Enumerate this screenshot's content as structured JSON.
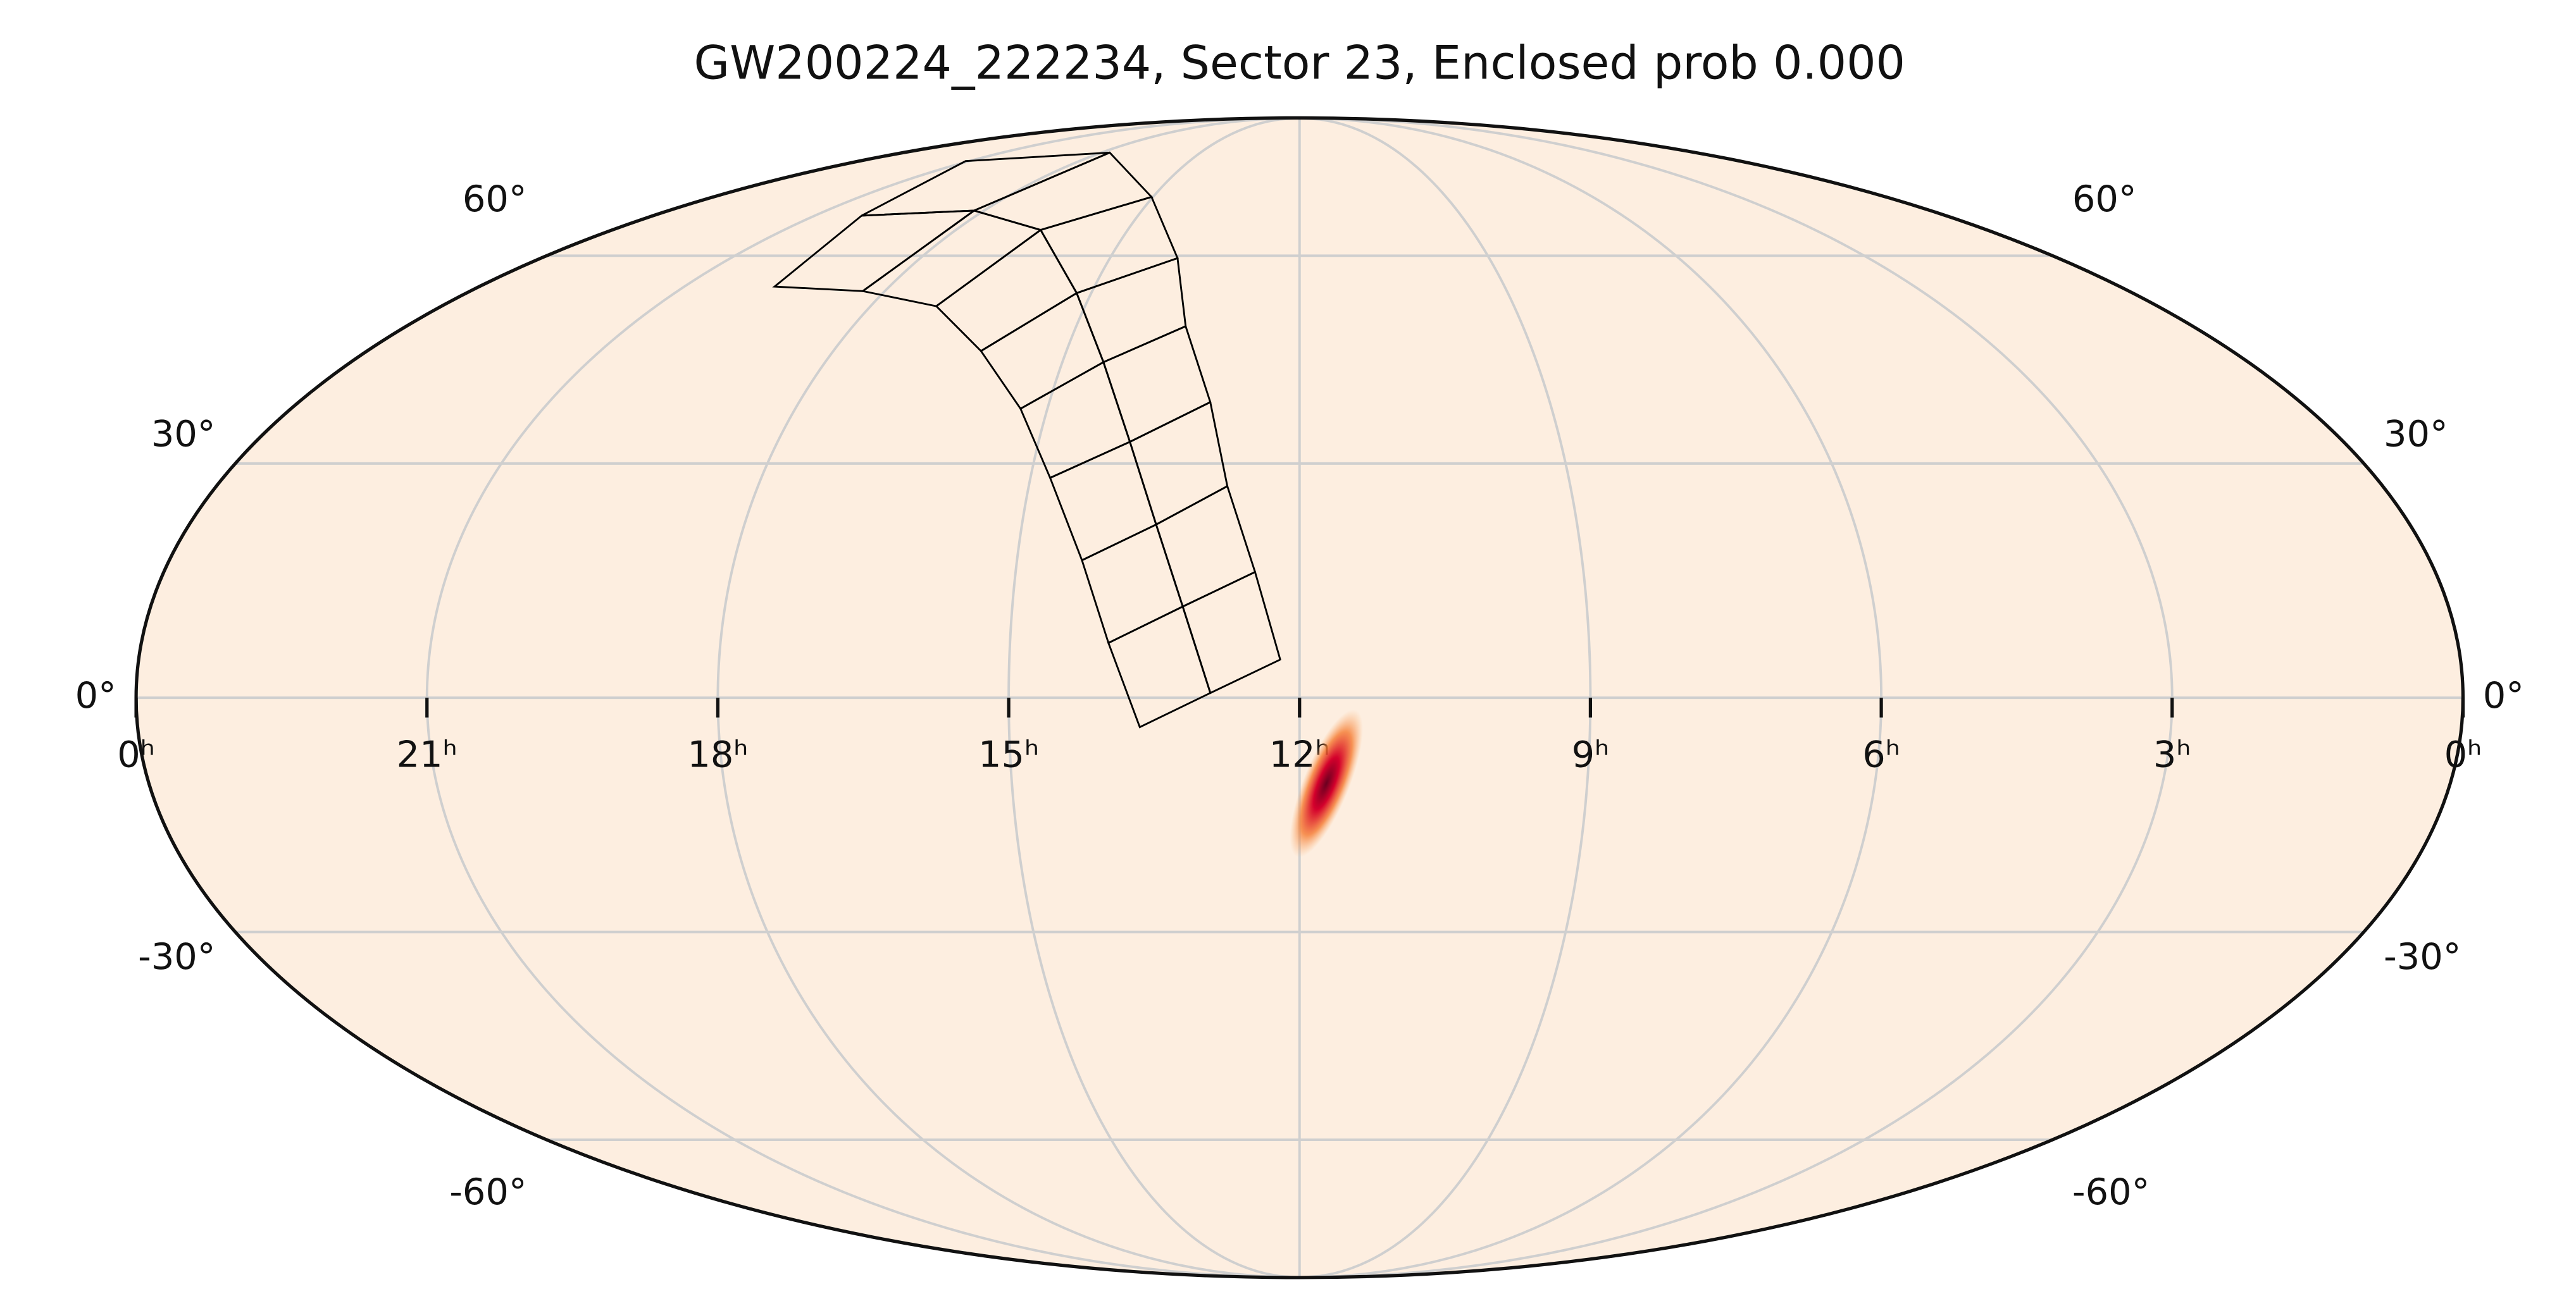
{
  "chart_data": {
    "type": "mollweide",
    "title": "GW200224_222234, Sector 23, Enclosed prob 0.000",
    "background": "#fdeee0",
    "grid": true,
    "xlim": [
      24,
      0
    ],
    "ylim": [
      -90,
      90
    ],
    "xticks": [
      {
        "value": 24,
        "label": "0ʰ"
      },
      {
        "value": 21,
        "label": "21ʰ"
      },
      {
        "value": 18,
        "label": "18ʰ"
      },
      {
        "value": 15,
        "label": "15ʰ"
      },
      {
        "value": 12,
        "label": "12ʰ"
      },
      {
        "value": 9,
        "label": "9ʰ"
      },
      {
        "value": 6,
        "label": "6ʰ"
      },
      {
        "value": 3,
        "label": "3ʰ"
      },
      {
        "value": 0,
        "label": "0ʰ"
      }
    ],
    "yticks": [
      {
        "value": 60,
        "label": "60°"
      },
      {
        "value": 30,
        "label": "30°"
      },
      {
        "value": 0,
        "label": "0°"
      },
      {
        "value": -30,
        "label": "-30°"
      },
      {
        "value": -60,
        "label": "-60°"
      }
    ],
    "footprint": {
      "color": "#000000",
      "ra": [
        [
          13.65,
          12.92,
          12.2
        ],
        [
          13.98,
          13.22,
          12.47
        ],
        [
          14.31,
          13.55,
          12.8
        ],
        [
          14.78,
          13.95,
          13.07
        ],
        [
          15.32,
          14.48,
          13.53
        ],
        [
          16.1,
          15.21,
          13.93
        ],
        [
          17.08,
          16.52,
          15.03
        ],
        [
          18.32,
          18.19,
          17.75
        ],
        [
          19.68,
          20.13,
          21.1
        ]
      ],
      "dec": [
        [
          -3.7,
          0.6,
          4.8
        ],
        [
          6.9,
          11.5,
          15.9
        ],
        [
          17.4,
          22.0,
          27.0
        ],
        [
          28.1,
          32.9,
          38.3
        ],
        [
          37.4,
          43.9,
          49.1
        ],
        [
          45.5,
          54.1,
          59.6
        ],
        [
          52.1,
          64.3,
          70.2
        ],
        [
          54.4,
          67.7,
          79.3
        ],
        [
          55.1,
          66.8,
          77.4
        ]
      ]
    },
    "localization": {
      "ra": 11.72,
      "dec": -10.8,
      "color": "#c8002a"
    }
  }
}
